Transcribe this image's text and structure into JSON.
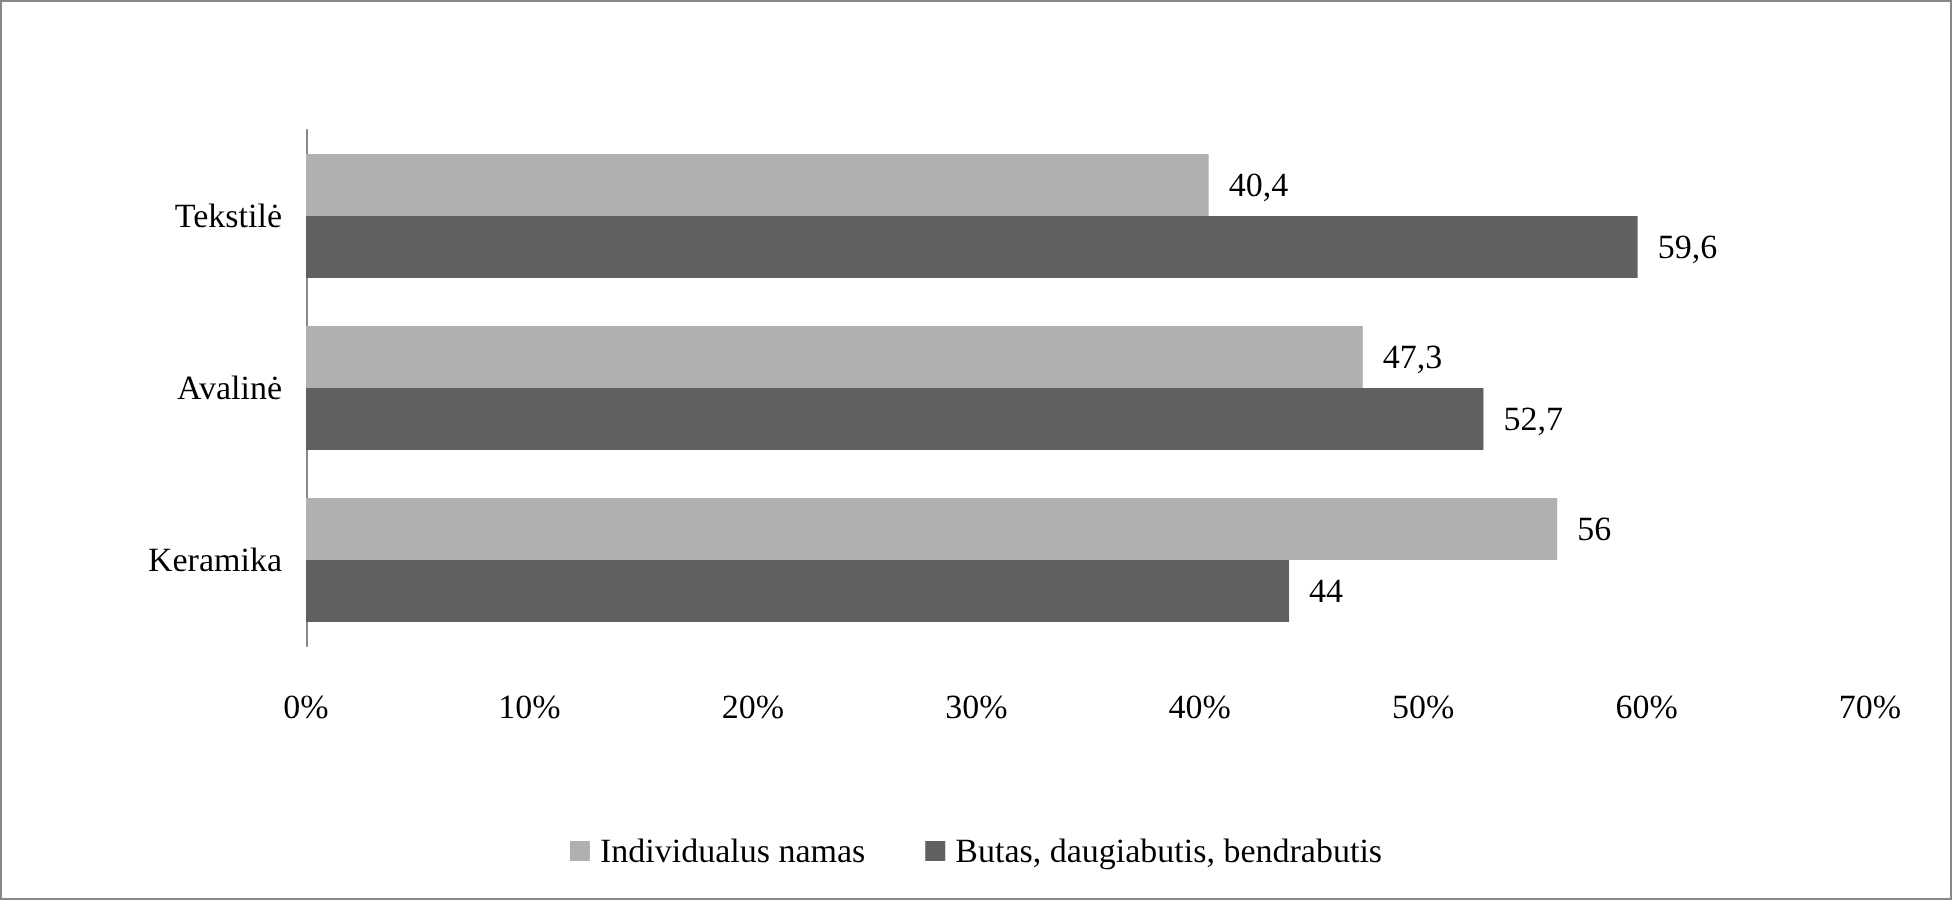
{
  "chart_data": {
    "type": "bar",
    "orientation": "horizontal",
    "categories": [
      "Tekstilė",
      "Avalinė",
      "Keramika"
    ],
    "series": [
      {
        "name": "Individualus namas",
        "color": "#b0b0b0",
        "values": [
          40.4,
          47.3,
          56
        ],
        "value_labels": [
          "40,4",
          "47,3",
          "56"
        ]
      },
      {
        "name": "Butas, daugiabutis, bendrabutis",
        "color": "#606060",
        "values": [
          59.6,
          52.7,
          44
        ],
        "value_labels": [
          "59,6",
          "52,7",
          "44"
        ]
      }
    ],
    "xlim": [
      0,
      70
    ],
    "xticks": [
      {
        "value": 0,
        "label": "0%"
      },
      {
        "value": 10,
        "label": "10%"
      },
      {
        "value": 20,
        "label": "20%"
      },
      {
        "value": 30,
        "label": "30%"
      },
      {
        "value": 40,
        "label": "40%"
      },
      {
        "value": 50,
        "label": "50%"
      },
      {
        "value": 60,
        "label": "60%"
      },
      {
        "value": 70,
        "label": "70%"
      }
    ],
    "grid": false,
    "legend": "bottom"
  }
}
